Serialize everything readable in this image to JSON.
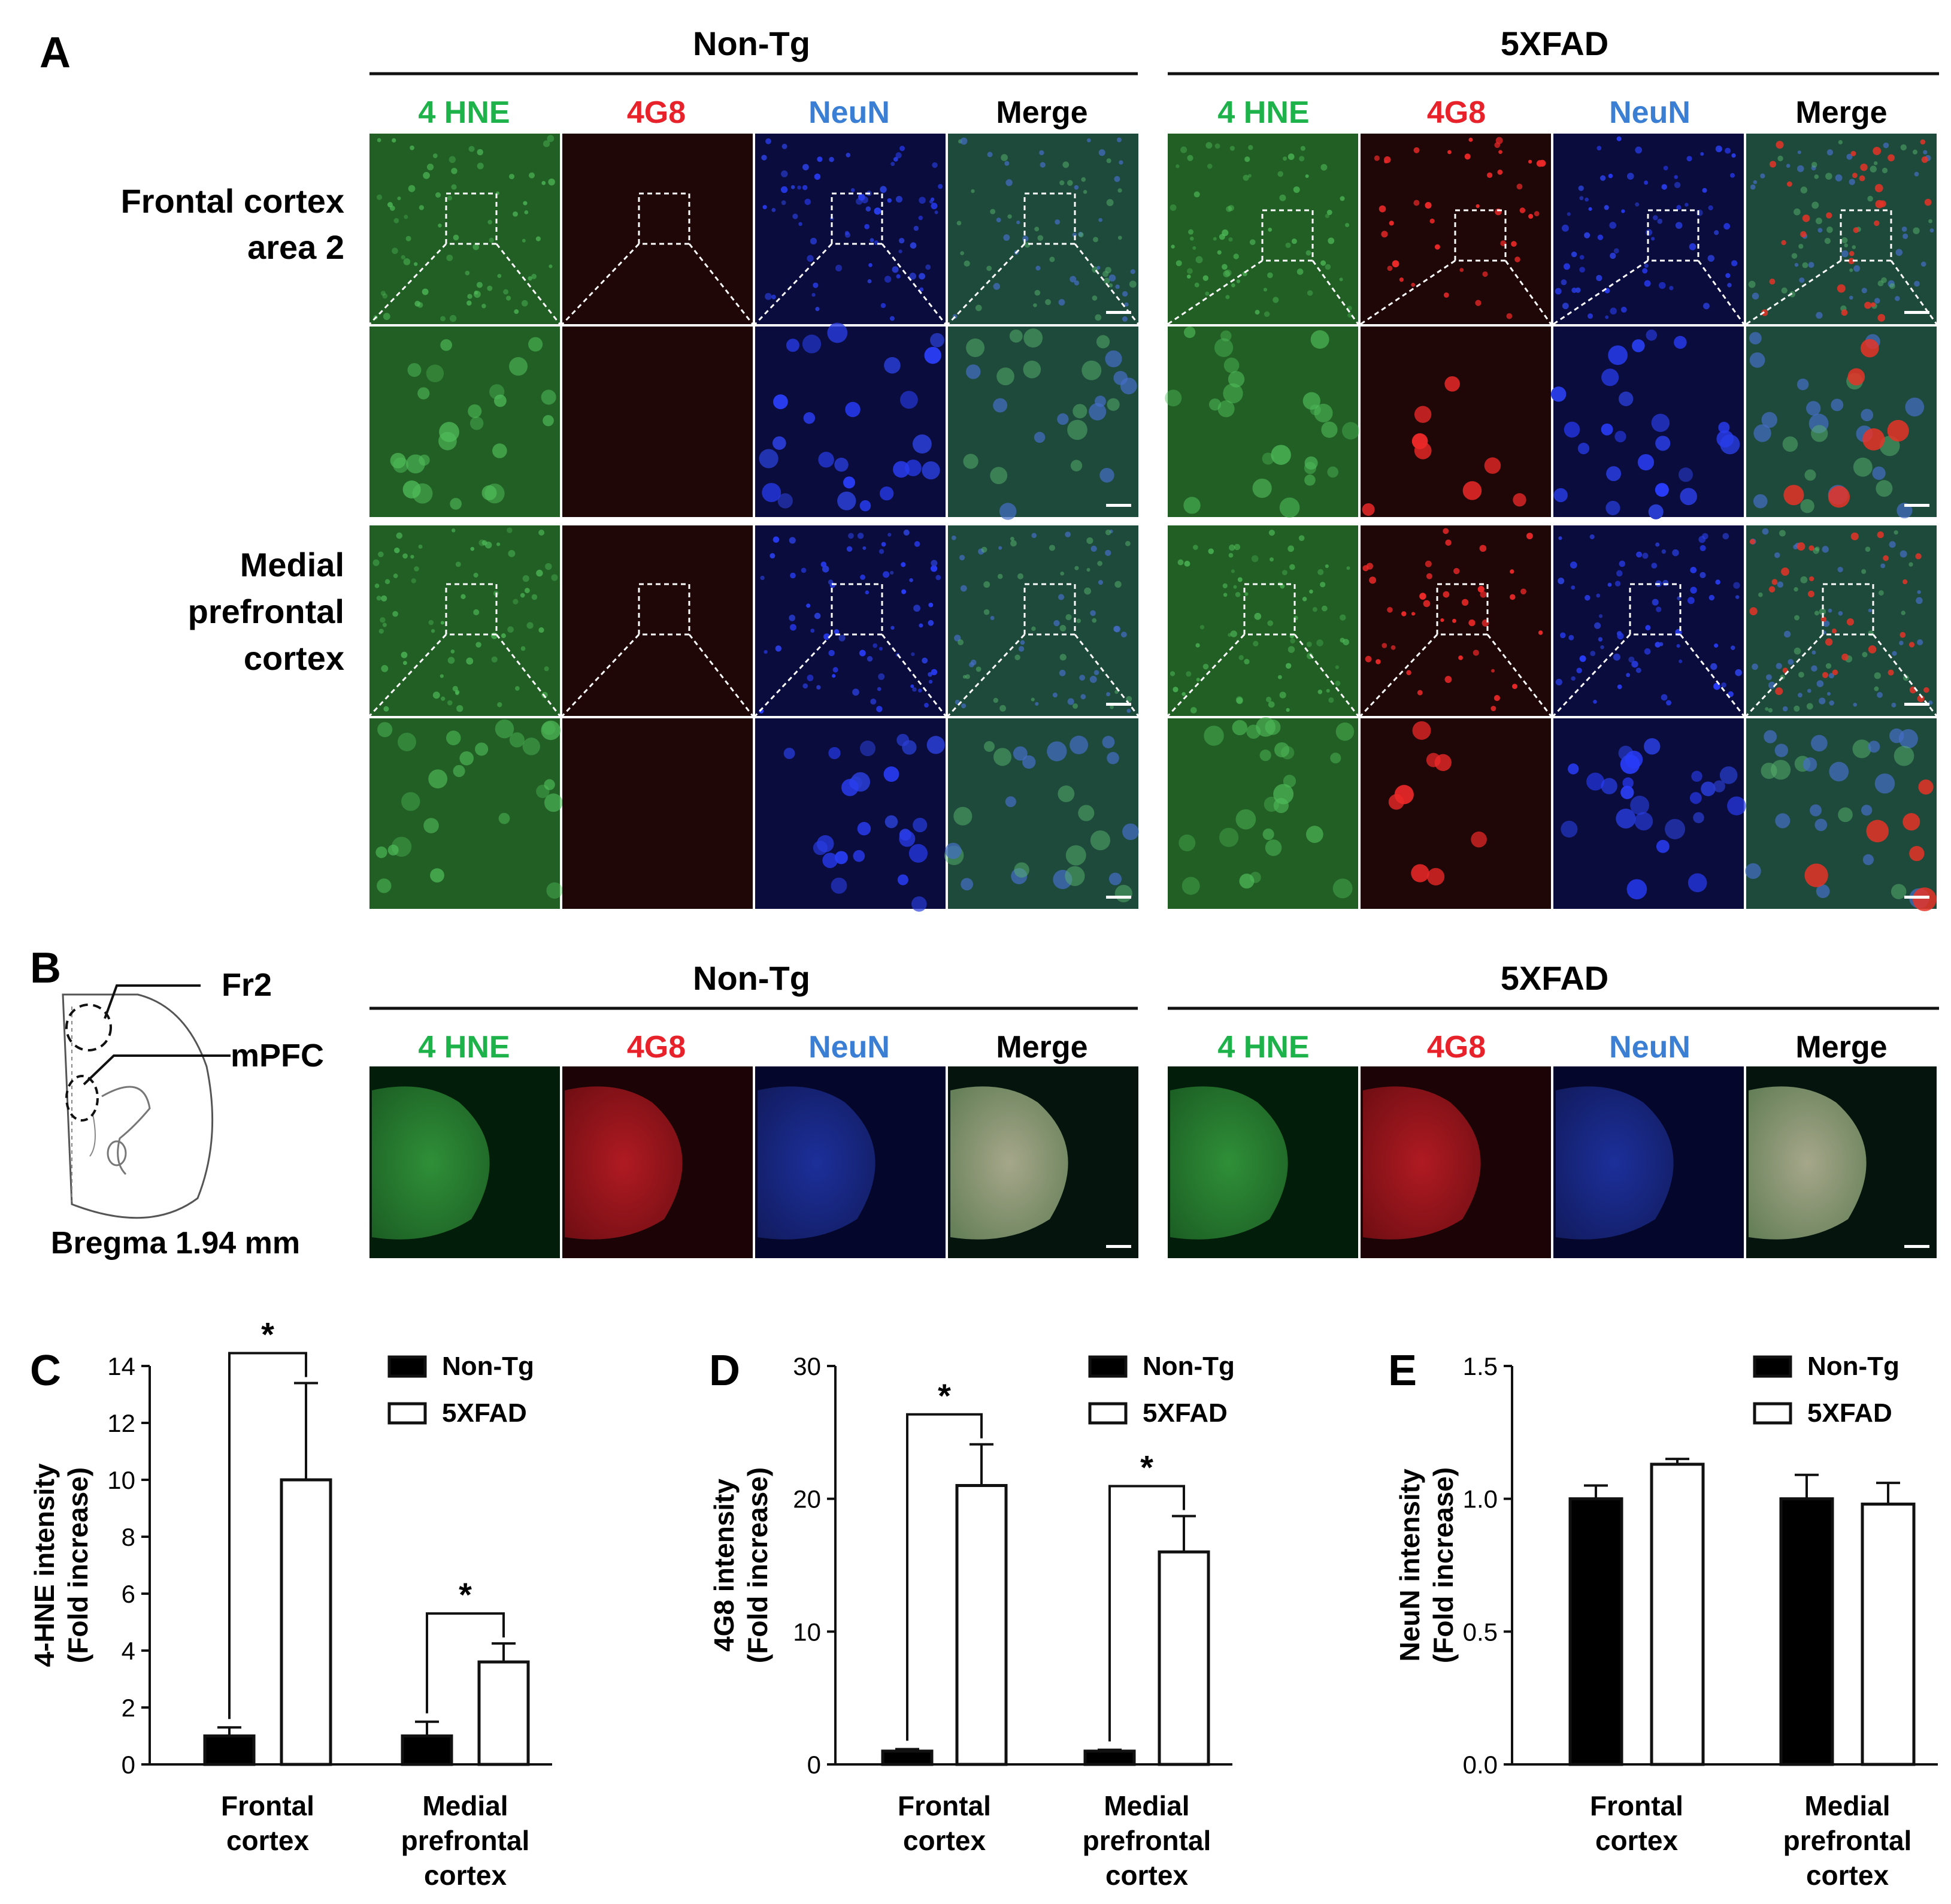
{
  "panel_letters": [
    "A",
    "B",
    "C",
    "D",
    "E"
  ],
  "groups": [
    "Non-Tg",
    "5XFAD"
  ],
  "channels": [
    "4 HNE",
    "4G8",
    "NeuN",
    "Merge"
  ],
  "channel_colors": [
    "#1db24a",
    "#e8222a",
    "#3b7fd4",
    "#111111"
  ],
  "panel_a": {
    "row_labels": [
      [
        "Frontal cortex",
        "area 2"
      ],
      [
        "Medial",
        "prefrontal",
        "cortex"
      ]
    ]
  },
  "panel_b": {
    "diagram_labels": [
      "Fr2",
      "mPFC"
    ],
    "bregma": "Bregma 1.94 mm"
  },
  "legend": [
    "Non-Tg",
    "5XFAD"
  ],
  "significance_mark": "*",
  "chart_data": [
    {
      "panel": "C",
      "type": "bar",
      "ylabel": [
        "4-HNE intensity",
        "(Fold increase)"
      ],
      "categories": [
        [
          "Frontal",
          "cortex"
        ],
        [
          "Medial",
          "prefrontal",
          "cortex"
        ]
      ],
      "ylim": [
        0,
        14
      ],
      "yticks": [
        "0",
        "2",
        "4",
        "6",
        "8",
        "10",
        "12",
        "14"
      ],
      "ytick_values": [
        0,
        2,
        4,
        6,
        8,
        10,
        12,
        14
      ],
      "series": [
        {
          "name": "Non-Tg",
          "color": "#000000",
          "values": [
            1.0,
            1.0
          ],
          "errors": [
            0.3,
            0.5
          ]
        },
        {
          "name": "5XFAD",
          "color": "#ffffff",
          "values": [
            10.0,
            3.6
          ],
          "errors": [
            3.4,
            0.65
          ]
        }
      ],
      "significance": [
        "*",
        "*"
      ]
    },
    {
      "panel": "D",
      "type": "bar",
      "ylabel": [
        "4G8 intensity",
        "(Fold increase)"
      ],
      "categories": [
        [
          "Frontal",
          "cortex"
        ],
        [
          "Medial",
          "prefrontal",
          "cortex"
        ]
      ],
      "ylim": [
        0,
        30
      ],
      "yticks": [
        "0",
        "10",
        "20",
        "30"
      ],
      "ytick_values": [
        0,
        10,
        20,
        30
      ],
      "series": [
        {
          "name": "Non-Tg",
          "color": "#000000",
          "values": [
            1.0,
            1.0
          ],
          "errors": [
            0.15,
            0.1
          ]
        },
        {
          "name": "5XFAD",
          "color": "#ffffff",
          "values": [
            21.0,
            16.0
          ],
          "errors": [
            3.1,
            2.7
          ]
        }
      ],
      "significance": [
        "*",
        "*"
      ]
    },
    {
      "panel": "E",
      "type": "bar",
      "ylabel": [
        "NeuN intensity",
        "(Fold increase)"
      ],
      "categories": [
        [
          "Frontal",
          "cortex"
        ],
        [
          "Medial",
          "prefrontal",
          "cortex"
        ]
      ],
      "ylim": [
        0,
        1.5
      ],
      "yticks": [
        "0.0",
        "0.5",
        "1.0",
        "1.5"
      ],
      "ytick_values": [
        0,
        0.5,
        1.0,
        1.5
      ],
      "series": [
        {
          "name": "Non-Tg",
          "color": "#000000",
          "values": [
            1.0,
            1.0
          ],
          "errors": [
            0.05,
            0.09
          ]
        },
        {
          "name": "5XFAD",
          "color": "#ffffff",
          "values": [
            1.13,
            0.98
          ],
          "errors": [
            0.02,
            0.08
          ]
        }
      ],
      "significance": []
    }
  ]
}
